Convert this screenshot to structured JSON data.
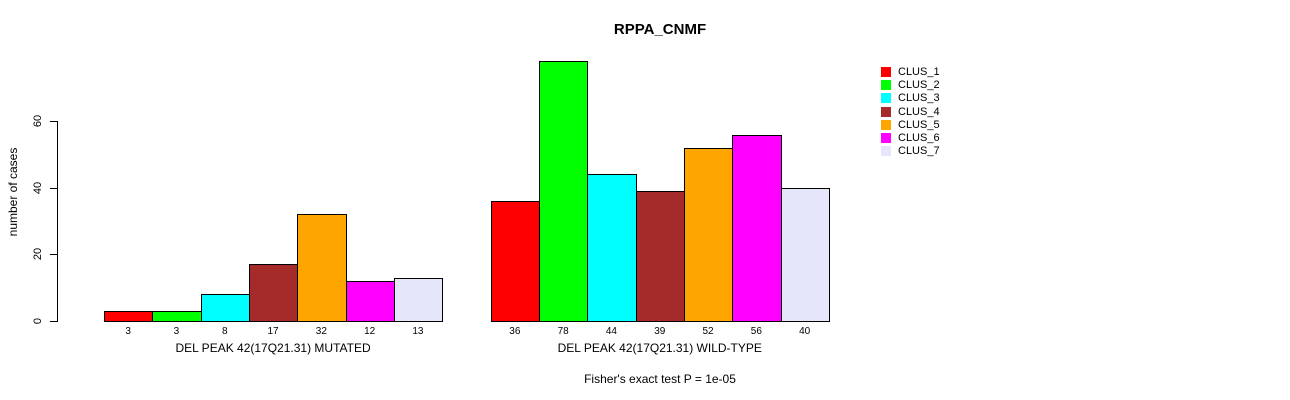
{
  "chart_data": {
    "type": "bar",
    "title": "RPPA_CNMF",
    "ylabel": "number of cases",
    "xlabel": "",
    "yticks": [
      0,
      20,
      40,
      60
    ],
    "ylim": [
      0,
      78
    ],
    "grid": false,
    "legend_position": "top-right",
    "bar_border_color": "#000000",
    "groups": [
      {
        "label": "DEL PEAK 42(17Q21.31) MUTATED",
        "values": [
          3,
          3,
          8,
          17,
          32,
          12,
          13
        ]
      },
      {
        "label": "DEL PEAK 42(17Q21.31) WILD-TYPE",
        "values": [
          36,
          78,
          44,
          39,
          52,
          56,
          40
        ]
      }
    ],
    "series": [
      {
        "name": "CLUS_1",
        "color": "#FF0000"
      },
      {
        "name": "CLUS_2",
        "color": "#00FF00"
      },
      {
        "name": "CLUS_3",
        "color": "#00FFFF"
      },
      {
        "name": "CLUS_4",
        "color": "#A52A2A"
      },
      {
        "name": "CLUS_5",
        "color": "#FFA500"
      },
      {
        "name": "CLUS_6",
        "color": "#FF00FF"
      },
      {
        "name": "CLUS_7",
        "color": "#E6E6FA"
      }
    ],
    "annotation": "Fisher's exact test P = 1e-05"
  }
}
